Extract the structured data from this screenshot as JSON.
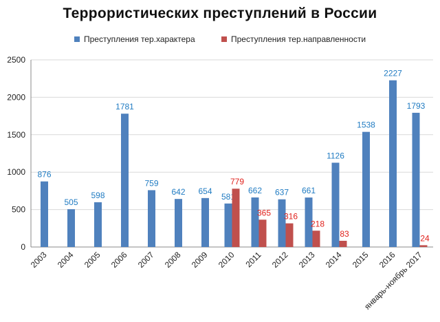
{
  "chart_data": {
    "type": "bar",
    "title": "Террористических  преступлений  в России",
    "categories": [
      "2003",
      "2004",
      "2005",
      "2006",
      "2007",
      "2008",
      "2009",
      "2010",
      "2011",
      "2012",
      "2013",
      "2014",
      "2015",
      "2016",
      "январь-ноябрь 2017"
    ],
    "series": [
      {
        "name": "Преступления тер.характера",
        "color": "#4F81BD",
        "label_color": "#1F7BC2",
        "values": [
          876,
          505,
          598,
          1781,
          759,
          642,
          654,
          581,
          662,
          637,
          661,
          1126,
          1538,
          2227,
          1793
        ]
      },
      {
        "name": "Преступления тер.направленности",
        "color": "#C0504D",
        "label_color": "#E0201B",
        "values": [
          null,
          null,
          null,
          null,
          null,
          null,
          null,
          779,
          365,
          316,
          218,
          83,
          null,
          null,
          24
        ]
      }
    ],
    "ylim": [
      0,
      2500
    ],
    "yticks": [
      0,
      500,
      1000,
      1500,
      2000,
      2500
    ],
    "grid": true,
    "legend": "top-center",
    "xlabel": "",
    "ylabel": ""
  }
}
